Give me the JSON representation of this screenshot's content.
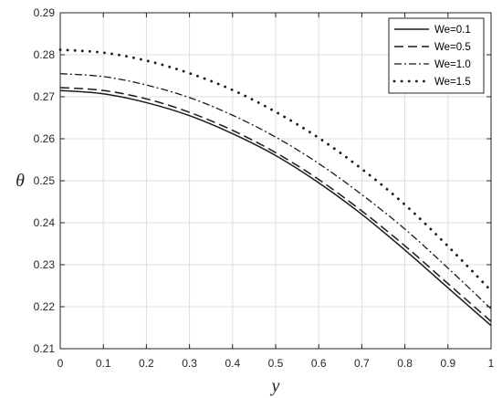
{
  "chart_data": {
    "type": "line",
    "xlabel": "y",
    "ylabel": "θ",
    "xlim": [
      0,
      1
    ],
    "ylim": [
      0.21,
      0.29
    ],
    "xticks": [
      0,
      0.1,
      0.2,
      0.3,
      0.4,
      0.5,
      0.6,
      0.7,
      0.8,
      0.9,
      1
    ],
    "yticks": [
      0.21,
      0.22,
      0.23,
      0.24,
      0.25,
      0.26,
      0.27,
      0.28,
      0.29
    ],
    "xtick_labels": [
      "0",
      "0.1",
      "0.2",
      "0.3",
      "0.4",
      "0.5",
      "0.6",
      "0.7",
      "0.8",
      "0.9",
      "1"
    ],
    "ytick_labels": [
      "0.21",
      "0.22",
      "0.23",
      "0.24",
      "0.25",
      "0.26",
      "0.27",
      "0.28",
      "0.29"
    ],
    "grid": true,
    "legend_position": "top-right",
    "x": [
      0,
      0.1,
      0.2,
      0.3,
      0.4,
      0.5,
      0.6,
      0.7,
      0.8,
      0.9,
      1.0
    ],
    "series": [
      {
        "name": "We=0.1",
        "style": "solid",
        "values": [
          0.2715,
          0.2707,
          0.2686,
          0.2655,
          0.2612,
          0.256,
          0.2495,
          0.242,
          0.2335,
          0.2245,
          0.2155
        ]
      },
      {
        "name": "We=0.5",
        "style": "dashed",
        "values": [
          0.2722,
          0.2715,
          0.2695,
          0.2663,
          0.262,
          0.2567,
          0.2503,
          0.2428,
          0.2345,
          0.2255,
          0.2165
        ]
      },
      {
        "name": "We=1.0",
        "style": "dashdot",
        "values": [
          0.2755,
          0.2748,
          0.2728,
          0.2698,
          0.2656,
          0.2604,
          0.2541,
          0.2467,
          0.2385,
          0.2292,
          0.2195
        ]
      },
      {
        "name": "We=1.5",
        "style": "dotted",
        "values": [
          0.2812,
          0.2805,
          0.2786,
          0.2756,
          0.2716,
          0.2664,
          0.2602,
          0.2528,
          0.2443,
          0.2344,
          0.2238
        ]
      }
    ]
  }
}
